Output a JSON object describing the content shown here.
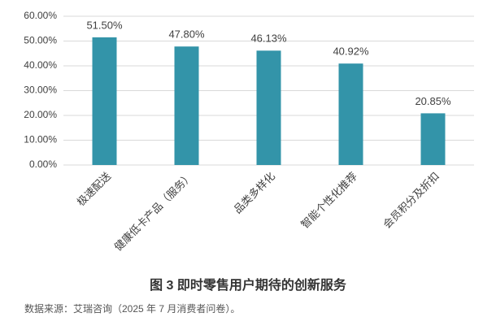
{
  "chart_data": {
    "type": "bar",
    "title": "图 3 即时零售用户期待的创新服务",
    "source": "数据来源：艾瑞咨询（2025 年 7 月消费者问卷）。",
    "categories": [
      "极速配送",
      "健康低卡产品（服务）",
      "品类多样化",
      "智能个性化推荐",
      "会员积分及折扣"
    ],
    "values": [
      51.5,
      47.8,
      46.13,
      40.92,
      20.85
    ],
    "value_labels": [
      "51.50%",
      "47.80%",
      "46.13%",
      "40.92%",
      "20.85%"
    ],
    "color": "#3394a9",
    "ylim": [
      0,
      60
    ],
    "yticks": [
      {
        "value": 0,
        "label": "0.00%"
      },
      {
        "value": 10,
        "label": "10.00%"
      },
      {
        "value": 20,
        "label": "20.00%"
      },
      {
        "value": 30,
        "label": "30.00%"
      },
      {
        "value": 40,
        "label": "40.00%"
      },
      {
        "value": 50,
        "label": "50.00%"
      },
      {
        "value": 60,
        "label": "60.00%"
      }
    ],
    "grid": true
  }
}
